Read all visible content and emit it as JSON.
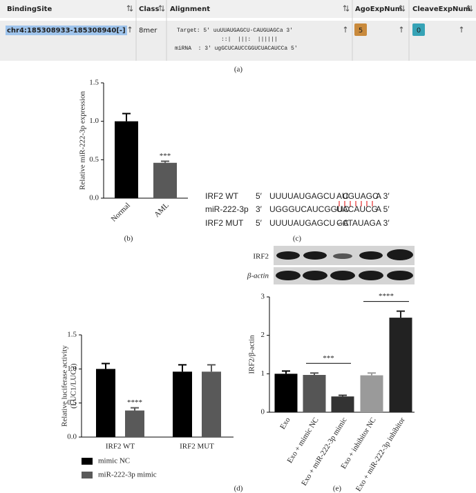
{
  "table": {
    "columns": [
      "BindingSite",
      "Class",
      "Alignment",
      "AgoExpNum",
      "CleaveExpNum"
    ],
    "rows": [
      [
        "chr4:185308933-185308940[-]",
        "8mer",
        [
          "Target: 5' uuUUAUGAGCU-CAUGUAGCa 3'",
          "::|  |||:  ||||||",
          "miRNA  : 3' ugGCUCAUCCGGUCUACAUCCa 5'"
        ],
        5,
        0
      ]
    ]
  },
  "panel_labels": [
    "(a)",
    "(b)",
    "(c)",
    "(d)",
    "(e)"
  ],
  "sequences": [
    {
      "name": "IRF2 WT",
      "end5": "5′",
      "parts": [
        "UUUUAUGAGCU - C",
        "AUGUAGC",
        "A 3′"
      ]
    },
    {
      "name": "miR-222-3p",
      "end5": "3′",
      "parts": [
        "UGGGUCAUCGGUC",
        "UACAUCG",
        "A 5′"
      ]
    },
    {
      "name": "IRF2 MUT",
      "end5": "5′",
      "parts": [
        "UUUUAUGAGCU - C",
        "GATAUAG",
        "A 3′"
      ]
    }
  ],
  "blot": {
    "labels": [
      "IRF2",
      "β-actin"
    ]
  },
  "chart_data": [
    {
      "type": "bar",
      "y_label": "Relative miR-222-3p expression",
      "categories": [
        "Normal",
        "AML"
      ],
      "values": [
        1.0,
        0.46
      ],
      "errors": [
        0.1,
        0.02
      ],
      "colors": [
        "#000000",
        "#595959"
      ],
      "annotations": [
        "***"
      ],
      "ylim": [
        0,
        1.5
      ],
      "yticks": [
        {
          "value": 0,
          "label": "0.0"
        },
        0.5,
        {
          "value": 1,
          "label": "1.0"
        },
        1.5
      ]
    },
    {
      "type": "bar",
      "y_label": [
        "Relative luciferase activity",
        "(LUC1/LUC2)"
      ],
      "categories": [
        "IRF2 WT",
        "IRF2 MUT"
      ],
      "series": [
        {
          "name": "mimic NC",
          "color": "#000000",
          "values": [
            1.0,
            0.96
          ],
          "errors": [
            0.08,
            0.1
          ]
        },
        {
          "name": "miR-222-3p mimic",
          "color": "#595959",
          "values": [
            0.39,
            0.96
          ],
          "errors": [
            0.04,
            0.1
          ]
        }
      ],
      "annotations": [
        "****"
      ],
      "ylim": [
        0,
        1.5
      ],
      "yticks": [
        {
          "value": 0,
          "label": "0.0"
        },
        0.5,
        {
          "value": 1,
          "label": "1.0"
        },
        1.5
      ]
    },
    {
      "type": "bar",
      "y_label": "IRF2/β-actin",
      "categories": [
        "Exo",
        "Exo + mimic NC",
        "Exo + miR-222-3p mimic",
        "Exo + inhibitor NC",
        "Exo + miR-222-3p inhibitor"
      ],
      "values": [
        1.0,
        0.97,
        0.41,
        0.96,
        2.46
      ],
      "errors": [
        0.07,
        0.05,
        0.03,
        0.06,
        0.17
      ],
      "colors": [
        "#000000",
        "#555555",
        "#333333",
        "#9a9a9a",
        "#222222"
      ],
      "annotations": [
        "***",
        "****"
      ],
      "ylim": [
        0,
        3
      ],
      "yticks": [
        0,
        1,
        2,
        3
      ]
    }
  ]
}
